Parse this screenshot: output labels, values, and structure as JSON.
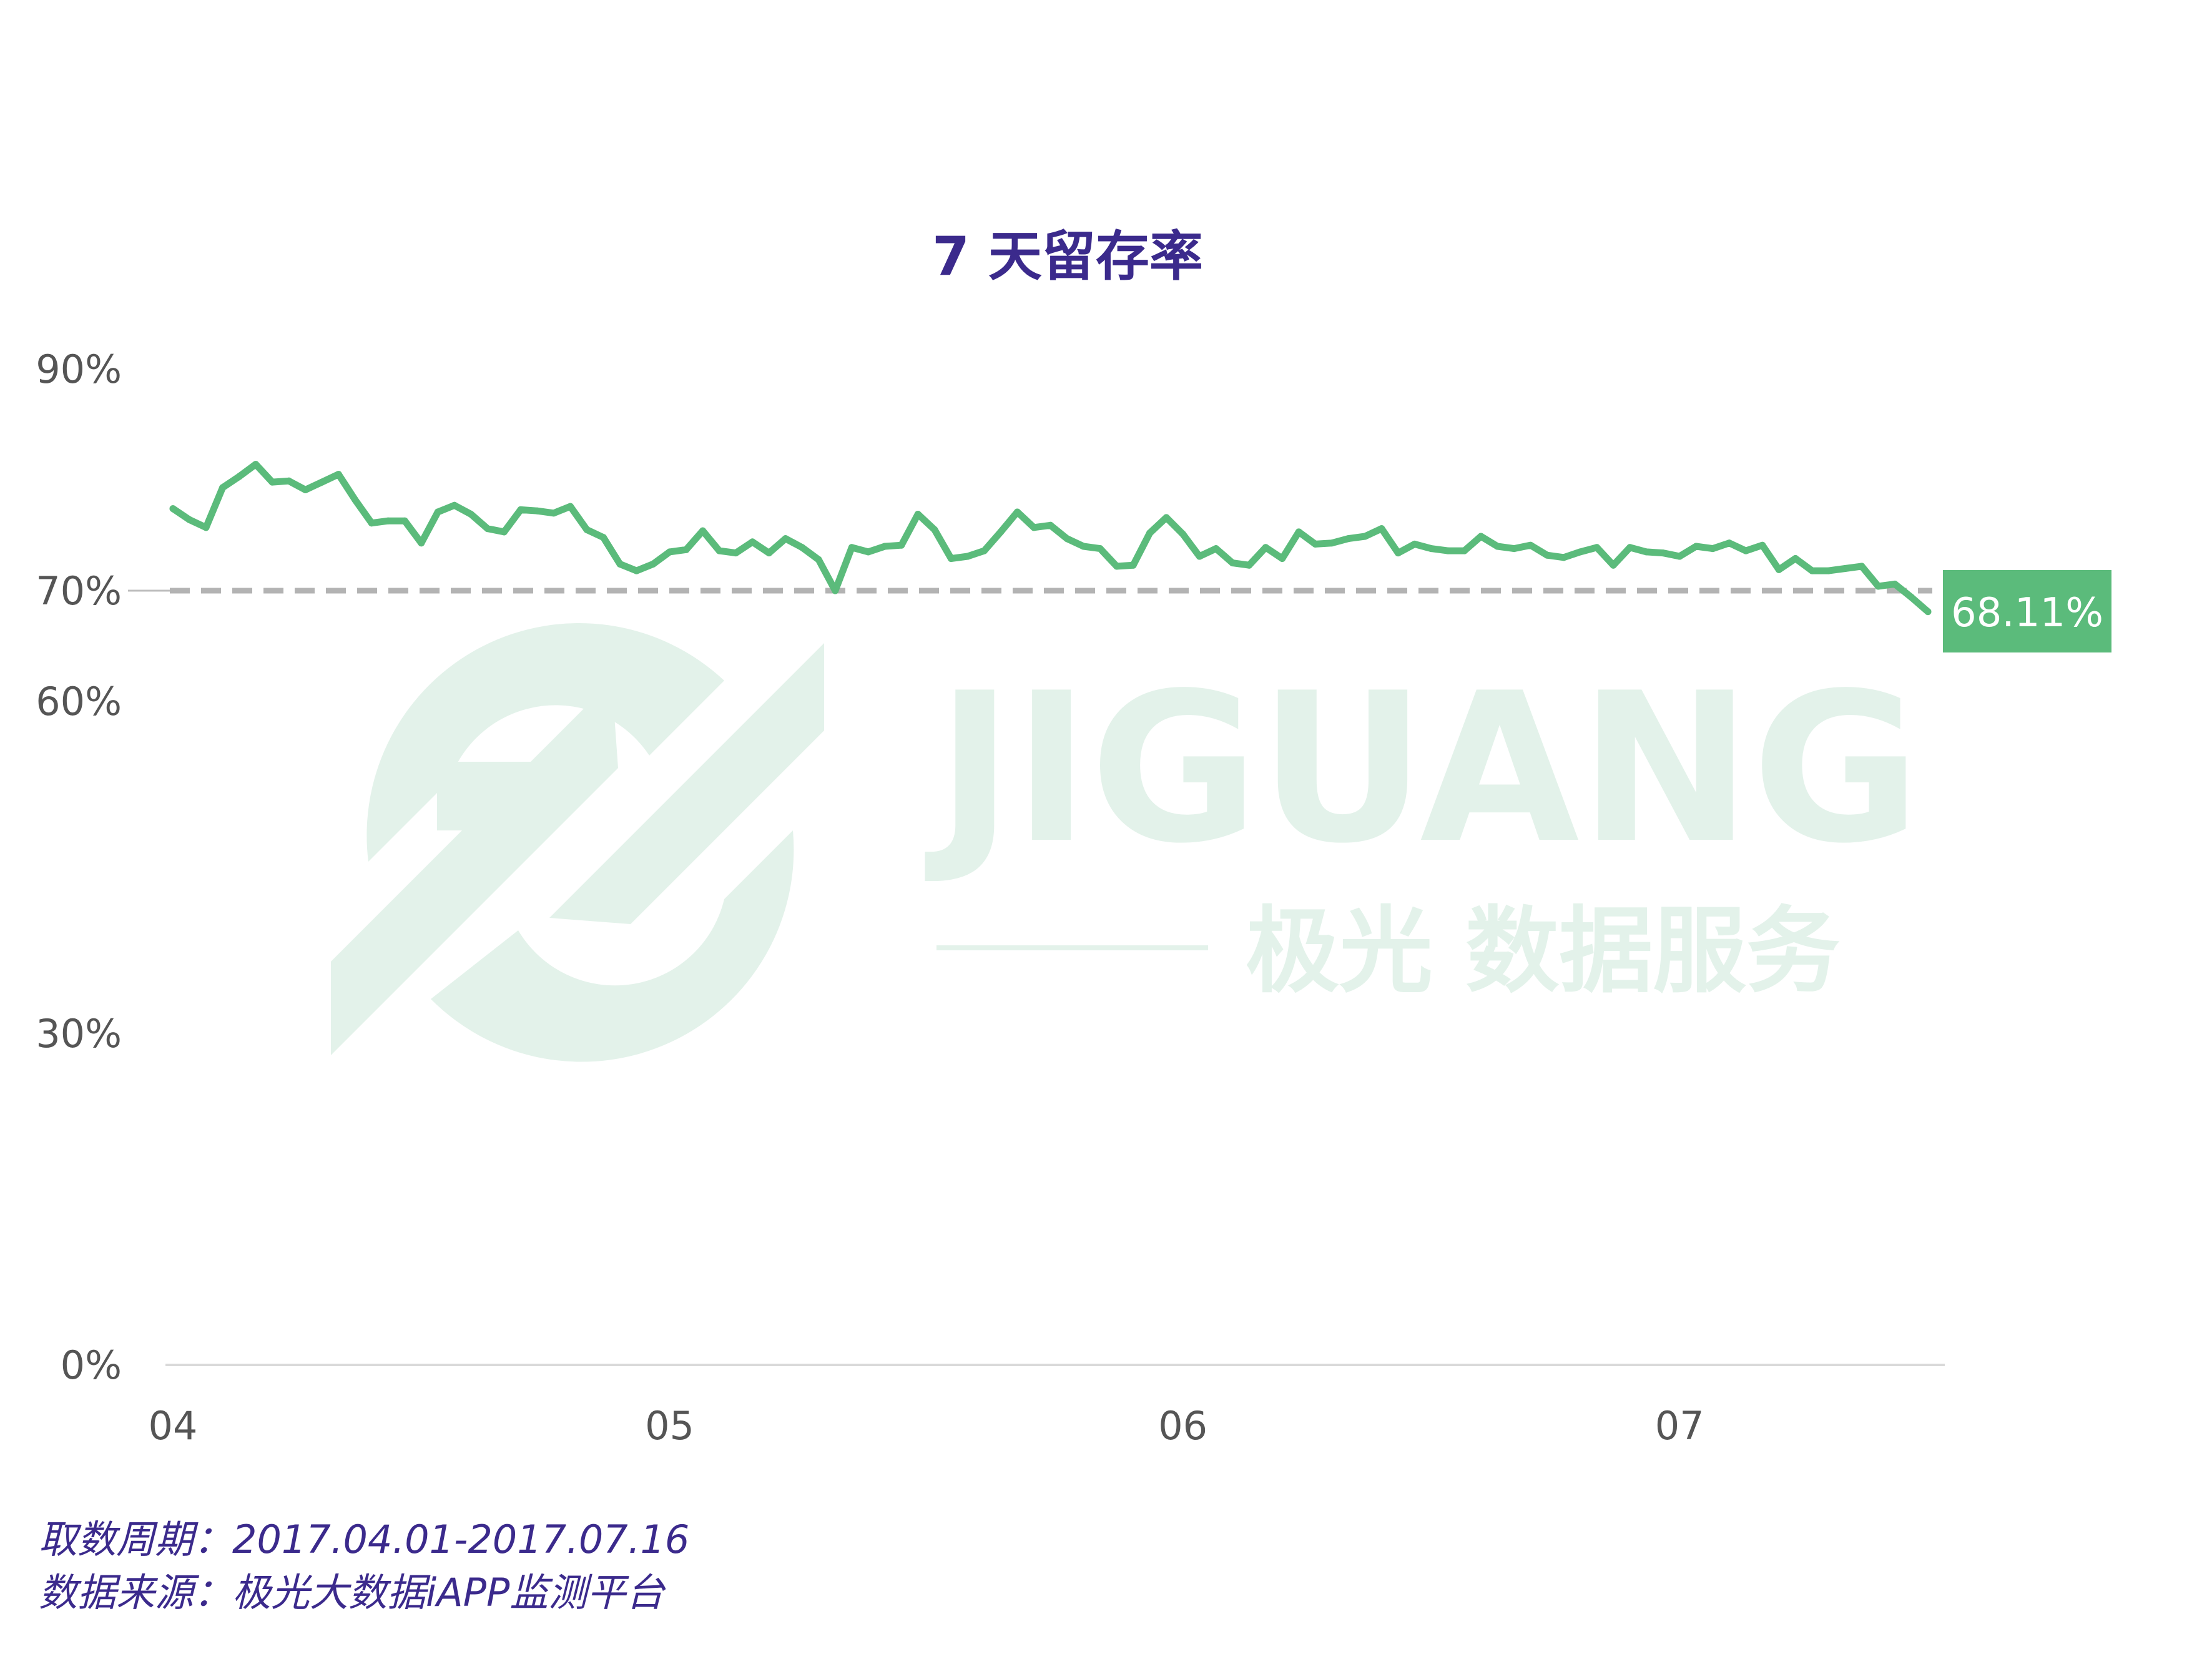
{
  "chart_data": {
    "type": "line",
    "title": "7 天留存率",
    "x_ticks": [
      "04",
      "05",
      "06",
      "07"
    ],
    "x_range": [
      "2017-04-01",
      "2017-07-16"
    ],
    "y_ticks": [
      "0%",
      "30%",
      "60%",
      "70%",
      "90%"
    ],
    "ylim": [
      0,
      90
    ],
    "grid": false,
    "reference_line": {
      "value": 70,
      "style": "dashed"
    },
    "end_label": "68.11%",
    "series": [
      {
        "values": [
          77.4,
          76.4,
          75.7,
          79.3,
          80.3,
          81.4,
          79.8,
          79.9,
          79.1,
          79.8,
          80.5,
          78.2,
          76.1,
          76.3,
          76.3,
          74.3,
          77.1,
          77.7,
          76.9,
          75.6,
          75.3,
          77.3,
          77.2,
          77.0,
          77.6,
          75.5,
          74.8,
          72.4,
          71.8,
          72.4,
          73.5,
          73.7,
          75.4,
          73.6,
          73.4,
          74.4,
          73.4,
          74.7,
          73.9,
          72.8,
          70.0,
          73.9,
          73.5,
          74.0,
          74.1,
          76.9,
          75.5,
          72.9,
          73.1,
          73.6,
          75.3,
          77.1,
          75.7,
          75.9,
          74.7,
          74.0,
          73.8,
          72.2,
          72.3,
          75.2,
          76.6,
          75.1,
          73.1,
          73.8,
          72.5,
          72.3,
          73.9,
          72.9,
          75.3,
          74.2,
          74.3,
          74.7,
          74.9,
          75.6,
          73.4,
          74.2,
          73.8,
          73.6,
          73.6,
          74.9,
          74.0,
          73.8,
          74.1,
          73.2,
          73.0,
          73.5,
          73.9,
          72.3,
          73.9,
          73.5,
          73.4,
          73.1,
          74.0,
          73.8,
          74.3,
          73.6,
          74.1,
          71.9,
          72.9,
          71.8,
          71.8,
          72.0,
          72.2,
          70.4,
          70.6,
          69.4,
          68.1
        ]
      }
    ]
  },
  "watermark": {
    "brand": "JIGUANG",
    "slogan": "极光 数据服务"
  },
  "footnotes": {
    "period": "取数周期：2017.04.01-2017.07.16",
    "source": "数据来源：极光大数据iAPP监测平台"
  },
  "colors": {
    "line": "#5bbb7b",
    "title": "#3b2a8c",
    "reference": "#b3b3b3",
    "label_bg": "#5bbb7b",
    "watermark": "#e3f2ea"
  }
}
